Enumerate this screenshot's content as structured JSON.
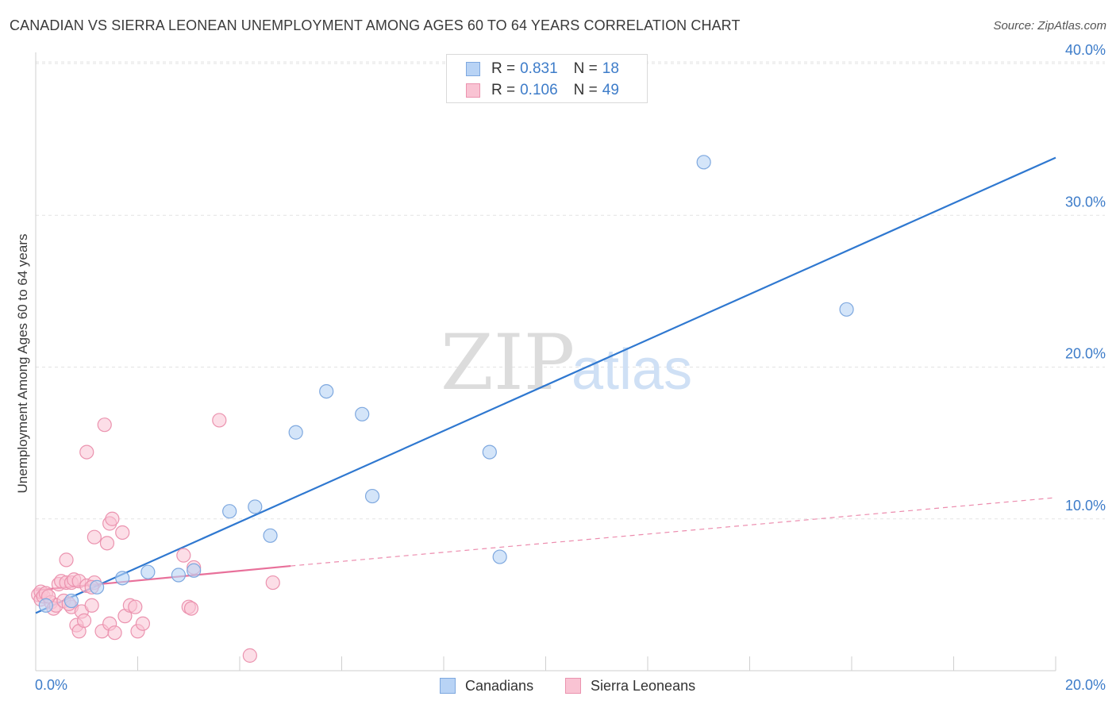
{
  "title": "CANADIAN VS SIERRA LEONEAN UNEMPLOYMENT AMONG AGES 60 TO 64 YEARS CORRELATION CHART",
  "source": "Source: ZipAtlas.com",
  "watermark": {
    "zip": "ZIP",
    "atlas": "atlas"
  },
  "legend": {
    "rows": [
      {
        "r_label": "R =",
        "r_value": "0.831",
        "n_label": "N =",
        "n_value": "18"
      },
      {
        "r_label": "R =",
        "r_value": "0.106",
        "n_label": "N =",
        "n_value": "49"
      }
    ]
  },
  "bottom_legend": {
    "canadians": "Canadians",
    "sierra_leoneans": "Sierra Leoneans"
  },
  "colors": {
    "blue_fill": "#b8d3f5",
    "blue_stroke": "#7ea8df",
    "blue_line": "#2f78d0",
    "pink_fill": "#f9c3d3",
    "pink_stroke": "#eb93af",
    "pink_line": "#e8709a",
    "tick_text": "#3d7cc9",
    "grid": "#e3e3e3"
  },
  "chart_data": {
    "type": "scatter",
    "title": "CANADIAN VS SIERRA LEONEAN UNEMPLOYMENT AMONG AGES 60 TO 64 YEARS CORRELATION CHART",
    "xlabel": "",
    "ylabel": "Unemployment Among Ages 60 to 64 years",
    "xlim": [
      0,
      20
    ],
    "ylim": [
      0,
      40
    ],
    "x_tick_labels": [
      "0.0%",
      "20.0%"
    ],
    "y_ticks": [
      10,
      20,
      30,
      40
    ],
    "y_tick_labels": [
      "10.0%",
      "20.0%",
      "30.0%",
      "40.0%"
    ],
    "grid": true,
    "series": [
      {
        "name": "Canadians",
        "r": 0.831,
        "n": 18,
        "points": [
          [
            0.2,
            4.3
          ],
          [
            0.7,
            4.6
          ],
          [
            1.2,
            5.5
          ],
          [
            1.7,
            6.1
          ],
          [
            2.2,
            6.5
          ],
          [
            2.8,
            6.3
          ],
          [
            3.1,
            6.6
          ],
          [
            3.8,
            10.5
          ],
          [
            4.3,
            10.8
          ],
          [
            4.6,
            8.9
          ],
          [
            5.1,
            15.7
          ],
          [
            5.7,
            18.4
          ],
          [
            6.4,
            16.9
          ],
          [
            6.6,
            11.5
          ],
          [
            8.9,
            14.4
          ],
          [
            9.1,
            7.5
          ],
          [
            13.1,
            33.5
          ],
          [
            15.9,
            23.8
          ]
        ],
        "trend": {
          "x": [
            0,
            20
          ],
          "y": [
            3.8,
            33.8
          ],
          "style": "solid"
        }
      },
      {
        "name": "Sierra Leoneans",
        "r": 0.106,
        "n": 49,
        "points": [
          [
            0.05,
            5.0
          ],
          [
            0.1,
            4.7
          ],
          [
            0.1,
            5.2
          ],
          [
            0.15,
            4.9
          ],
          [
            0.2,
            5.1
          ],
          [
            0.3,
            4.5
          ],
          [
            0.35,
            4.1
          ],
          [
            0.4,
            4.3
          ],
          [
            0.45,
            5.7
          ],
          [
            0.5,
            5.9
          ],
          [
            0.55,
            4.6
          ],
          [
            0.6,
            5.8
          ],
          [
            0.6,
            7.3
          ],
          [
            0.7,
            4.2
          ],
          [
            0.7,
            5.8
          ],
          [
            0.75,
            6.0
          ],
          [
            0.8,
            3.0
          ],
          [
            0.85,
            2.6
          ],
          [
            0.85,
            5.9
          ],
          [
            0.9,
            3.9
          ],
          [
            0.95,
            3.3
          ],
          [
            1.0,
            5.6
          ],
          [
            1.0,
            14.4
          ],
          [
            1.1,
            4.3
          ],
          [
            1.15,
            8.8
          ],
          [
            1.15,
            5.8
          ],
          [
            1.3,
            2.6
          ],
          [
            1.35,
            16.2
          ],
          [
            1.4,
            8.4
          ],
          [
            1.45,
            9.7
          ],
          [
            1.45,
            3.1
          ],
          [
            1.5,
            10.0
          ],
          [
            1.55,
            2.5
          ],
          [
            1.7,
            9.1
          ],
          [
            1.75,
            3.6
          ],
          [
            1.85,
            4.3
          ],
          [
            1.95,
            4.2
          ],
          [
            2.0,
            2.6
          ],
          [
            2.1,
            3.1
          ],
          [
            2.9,
            7.6
          ],
          [
            3.0,
            4.2
          ],
          [
            3.05,
            4.1
          ],
          [
            3.1,
            6.8
          ],
          [
            3.6,
            16.5
          ],
          [
            4.2,
            1.0
          ],
          [
            4.65,
            5.8
          ],
          [
            0.25,
            4.9
          ],
          [
            0.65,
            4.4
          ],
          [
            1.1,
            5.5
          ]
        ],
        "trend": {
          "x": [
            0,
            5.0
          ],
          "y": [
            5.3,
            6.9
          ],
          "style": "solid",
          "extended_to": [
            20,
            11.4
          ],
          "extended_style": "dashed"
        }
      }
    ]
  }
}
